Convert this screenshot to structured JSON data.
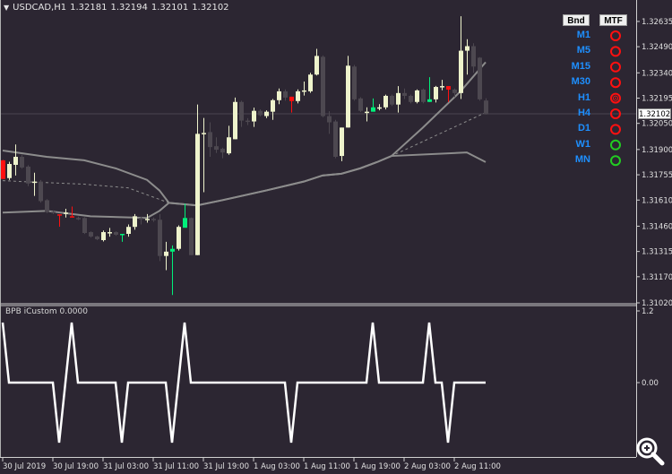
{
  "header": {
    "symbol": "USDCAD,H1",
    "open": "1.32181",
    "high": "1.32194",
    "low": "1.32101",
    "close": "1.32102"
  },
  "current_price_label": "1.32102",
  "colors": {
    "background": "#2c2632",
    "bull": "#eef3cc",
    "bear": "#4d4850",
    "red": "#ff1010",
    "green": "#00f07a",
    "band": "#8c8c8c",
    "axis": "#d0d0d0",
    "mtf_label": "#1e8fff"
  },
  "mtf_panel": {
    "bnd_label": "Bnd",
    "mtf_label": "MTF",
    "rows": [
      {
        "tf": "M1",
        "status": "red",
        "icon": "ring-icon"
      },
      {
        "tf": "M5",
        "status": "red",
        "icon": "ring-icon"
      },
      {
        "tf": "M15",
        "status": "red",
        "icon": "ring-icon"
      },
      {
        "tf": "M30",
        "status": "red",
        "icon": "ring-icon"
      },
      {
        "tf": "H1",
        "status": "red",
        "icon": "target-icon"
      },
      {
        "tf": "H4",
        "status": "red",
        "icon": "ring-icon"
      },
      {
        "tf": "D1",
        "status": "red",
        "icon": "ring-icon"
      },
      {
        "tf": "W1",
        "status": "green",
        "icon": "ring-icon"
      },
      {
        "tf": "MN",
        "status": "green",
        "icon": "ring-icon"
      }
    ]
  },
  "chart_data": [
    {
      "type": "candlestick",
      "title": "USDCAD,H1",
      "price_range": [
        1.3102,
        1.32758
      ],
      "price_ticks": [
        "1.32635",
        "1.32490",
        "1.32340",
        "1.32195",
        "1.32050",
        "1.31900",
        "1.31755",
        "1.31610",
        "1.31460",
        "1.31315",
        "1.31170",
        "1.31020"
      ],
      "time_ticks": [
        {
          "bar": 0,
          "label": "30 Jul 2019"
        },
        {
          "bar": 8,
          "label": "30 Jul 19:00"
        },
        {
          "bar": 16,
          "label": "31 Jul 03:00"
        },
        {
          "bar": 24,
          "label": "31 Jul 11:00"
        },
        {
          "bar": 32,
          "label": "31 Jul 19:00"
        },
        {
          "bar": 40,
          "label": "1 Aug 03:00"
        },
        {
          "bar": 48,
          "label": "1 Aug 11:00"
        },
        {
          "bar": 56,
          "label": "1 Aug 19:00"
        },
        {
          "bar": 64,
          "label": "2 Aug 03:00"
        },
        {
          "bar": 72,
          "label": "2 Aug 11:00"
        }
      ],
      "candles_ohlc_kind": [
        [
          1.31838,
          1.3184,
          1.31731,
          1.31731,
          "red"
        ],
        [
          1.31736,
          1.3183,
          1.31725,
          1.31817,
          "bull"
        ],
        [
          1.31812,
          1.31929,
          1.31751,
          1.31858,
          "bull"
        ],
        [
          1.31858,
          1.3187,
          1.3179,
          1.31797,
          "bear"
        ],
        [
          1.31802,
          1.3181,
          1.3169,
          1.31705,
          "bear"
        ],
        [
          1.31711,
          1.31767,
          1.31634,
          1.31716,
          "bull"
        ],
        [
          1.31716,
          1.31725,
          1.31595,
          1.31604,
          "bear"
        ],
        [
          1.31609,
          1.31615,
          1.31535,
          1.31543,
          "bear"
        ],
        [
          1.31543,
          1.3155,
          1.3153,
          1.31538,
          "bear"
        ],
        [
          1.31528,
          1.31528,
          1.31457,
          1.31523,
          "red"
        ],
        [
          1.31533,
          1.3156,
          1.3151,
          1.31538,
          "bull"
        ],
        [
          1.31517,
          1.31573,
          1.31512,
          1.31512,
          "red"
        ],
        [
          1.31507,
          1.31515,
          1.31495,
          1.31502,
          "bear"
        ],
        [
          1.31507,
          1.31512,
          1.31415,
          1.31421,
          "bear"
        ],
        [
          1.31426,
          1.3143,
          1.31395,
          1.31401,
          "bear"
        ],
        [
          1.31401,
          1.31405,
          1.3138,
          1.31385,
          "bear"
        ],
        [
          1.3138,
          1.31435,
          1.31372,
          1.31426,
          "bull"
        ],
        [
          1.31421,
          1.3145,
          1.314,
          1.31426,
          "bull"
        ],
        [
          1.31426,
          1.3143,
          1.31405,
          1.31411,
          "bear"
        ],
        [
          1.31416,
          1.31416,
          1.3137,
          1.31411,
          "green"
        ],
        [
          1.31416,
          1.3147,
          1.314,
          1.31456,
          "bull"
        ],
        [
          1.31456,
          1.3153,
          1.3144,
          1.31517,
          "bull"
        ],
        [
          1.31507,
          1.31515,
          1.3147,
          1.31502,
          "bear"
        ],
        [
          1.31497,
          1.3153,
          1.3148,
          1.31502,
          "bull"
        ],
        [
          1.31502,
          1.3151,
          1.31485,
          1.31497,
          "bear"
        ],
        [
          1.31497,
          1.3153,
          1.3126,
          1.31289,
          "bear"
        ],
        [
          1.31289,
          1.3137,
          1.31208,
          1.31314,
          "bull"
        ],
        [
          1.31314,
          1.3135,
          1.31065,
          1.3133,
          "green"
        ],
        [
          1.3133,
          1.31465,
          1.3132,
          1.31456,
          "bull"
        ],
        [
          1.31451,
          1.31589,
          1.31451,
          1.31507,
          "green"
        ],
        [
          1.31507,
          1.3151,
          1.31294,
          1.31294,
          "bear"
        ],
        [
          1.31294,
          1.32158,
          1.31294,
          1.3199,
          "bull"
        ],
        [
          1.3199,
          1.32081,
          1.31655,
          1.31995,
          "bull"
        ],
        [
          1.32,
          1.32056,
          1.31858,
          1.31914,
          "bear"
        ],
        [
          1.31919,
          1.3197,
          1.3188,
          1.31899,
          "bear"
        ],
        [
          1.31904,
          1.3191,
          1.3185,
          1.31883,
          "bear"
        ],
        [
          1.31878,
          1.32036,
          1.3187,
          1.3197,
          "bull"
        ],
        [
          1.31959,
          1.32198,
          1.31959,
          1.32173,
          "bull"
        ],
        [
          1.32173,
          1.3218,
          1.3203,
          1.32066,
          "bear"
        ],
        [
          1.32066,
          1.3208,
          1.3204,
          1.32061,
          "bear"
        ],
        [
          1.32061,
          1.3214,
          1.3203,
          1.32122,
          "bull"
        ],
        [
          1.32122,
          1.3213,
          1.3209,
          1.32097,
          "bear"
        ],
        [
          1.32092,
          1.32125,
          1.3208,
          1.32117,
          "bull"
        ],
        [
          1.32117,
          1.3219,
          1.3207,
          1.32183,
          "bull"
        ],
        [
          1.32183,
          1.3225,
          1.3216,
          1.32234,
          "bull"
        ],
        [
          1.32234,
          1.32245,
          1.3218,
          1.32198,
          "bear"
        ],
        [
          1.32203,
          1.32203,
          1.32112,
          1.32178,
          "red"
        ],
        [
          1.32178,
          1.32245,
          1.32165,
          1.32234,
          "bull"
        ],
        [
          1.32234,
          1.3229,
          1.3221,
          1.32239,
          "bull"
        ],
        [
          1.32234,
          1.3234,
          1.32225,
          1.3233,
          "bull"
        ],
        [
          1.3233,
          1.32478,
          1.32325,
          1.32437,
          "bull"
        ],
        [
          1.32432,
          1.3244,
          1.32085,
          1.32092,
          "bear"
        ],
        [
          1.32092,
          1.3212,
          1.3199,
          1.32056,
          "bear"
        ],
        [
          1.32061,
          1.3207,
          1.3185,
          1.31858,
          "bear"
        ],
        [
          1.31863,
          1.32026,
          1.31833,
          1.32026,
          "bull"
        ],
        [
          1.32026,
          1.32437,
          1.32026,
          1.32381,
          "bull"
        ],
        [
          1.32376,
          1.32385,
          1.3218,
          1.32188,
          "bear"
        ],
        [
          1.32193,
          1.322,
          1.32115,
          1.32122,
          "bear"
        ],
        [
          1.32112,
          1.32142,
          1.32061,
          1.32117,
          "bull"
        ],
        [
          1.32117,
          1.32193,
          1.32117,
          1.32142,
          "green"
        ],
        [
          1.32137,
          1.3216,
          1.32125,
          1.32142,
          "bull"
        ],
        [
          1.32142,
          1.32215,
          1.3213,
          1.32208,
          "bull"
        ],
        [
          1.32208,
          1.32215,
          1.3215,
          1.32158,
          "bear"
        ],
        [
          1.32158,
          1.32264,
          1.32112,
          1.32224,
          "bull"
        ],
        [
          1.32224,
          1.3225,
          1.3219,
          1.32208,
          "bear"
        ],
        [
          1.32208,
          1.32215,
          1.32165,
          1.32173,
          "bear"
        ],
        [
          1.32173,
          1.32245,
          1.32165,
          1.32239,
          "bull"
        ],
        [
          1.32244,
          1.3225,
          1.32165,
          1.32173,
          "bear"
        ],
        [
          1.32173,
          1.32315,
          1.32173,
          1.32188,
          "green"
        ],
        [
          1.32188,
          1.32265,
          1.3217,
          1.32259,
          "bull"
        ],
        [
          1.32259,
          1.323,
          1.3224,
          1.32264,
          "bull"
        ],
        [
          1.32264,
          1.32264,
          1.32173,
          1.32244,
          "red"
        ],
        [
          1.32244,
          1.3225,
          1.322,
          1.32224,
          "bear"
        ],
        [
          1.32224,
          1.32665,
          1.3219,
          1.32467,
          "bull"
        ],
        [
          1.32467,
          1.32533,
          1.3233,
          1.32493,
          "bull"
        ],
        [
          1.32493,
          1.3251,
          1.3234,
          1.32376,
          "bear"
        ],
        [
          1.32427,
          1.3243,
          1.3218,
          1.32188,
          "bear"
        ],
        [
          1.32181,
          1.32194,
          1.32101,
          1.32102,
          "bear"
        ]
      ],
      "bands": {
        "upper": [
          [
            0,
            1.31894
          ],
          [
            7,
            1.31858
          ],
          [
            13,
            1.31838
          ],
          [
            18,
            1.31792
          ],
          [
            23,
            1.31726
          ],
          [
            25,
            1.31665
          ],
          [
            26.5,
            1.31594
          ],
          [
            31,
            1.31579
          ],
          [
            35,
            1.31609
          ],
          [
            42,
            1.31665
          ],
          [
            48,
            1.31716
          ],
          [
            51,
            1.31751
          ],
          [
            54,
            1.31761
          ],
          [
            57,
            1.31792
          ],
          [
            59.7,
            1.31828
          ],
          [
            62,
            1.31863
          ],
          [
            67,
            1.32026
          ],
          [
            73,
            1.32234
          ],
          [
            77,
            1.32401
          ]
        ],
        "middle": [
          [
            0,
            1.31721
          ],
          [
            13,
            1.31701
          ],
          [
            20,
            1.3168
          ],
          [
            26.5,
            1.31594
          ],
          [
            31,
            1.31579
          ],
          [
            35,
            1.31609
          ],
          [
            42,
            1.31665
          ],
          [
            48,
            1.31716
          ],
          [
            51,
            1.31751
          ],
          [
            54,
            1.31761
          ],
          [
            57,
            1.31792
          ],
          [
            59.7,
            1.31828
          ],
          [
            62,
            1.31863
          ],
          [
            77,
            1.32112
          ]
        ],
        "lower": [
          [
            0,
            1.31538
          ],
          [
            7,
            1.31548
          ],
          [
            14,
            1.31517
          ],
          [
            23,
            1.31507
          ],
          [
            25,
            1.31548
          ],
          [
            26.5,
            1.31594
          ],
          [
            31,
            1.31579
          ],
          [
            35,
            1.31609
          ],
          [
            42,
            1.31665
          ],
          [
            48,
            1.31716
          ],
          [
            51,
            1.31751
          ],
          [
            54,
            1.31761
          ],
          [
            57,
            1.31792
          ],
          [
            59.7,
            1.31828
          ],
          [
            62,
            1.31863
          ],
          [
            74,
            1.31883
          ],
          [
            77,
            1.31828
          ]
        ]
      }
    },
    {
      "type": "line",
      "title": "BPB iCustom 0.0000",
      "yticks": [
        "1.2",
        "0.00"
      ],
      "ylim": [
        -1.1,
        1.2
      ],
      "values": [
        1,
        0,
        0,
        0,
        0,
        0,
        0,
        0,
        0,
        -1,
        0,
        1,
        0,
        0,
        0,
        0,
        0,
        0,
        0,
        -1,
        0,
        0,
        0,
        0,
        0,
        0,
        0,
        -1,
        0,
        1,
        0,
        0,
        0,
        0,
        0,
        0,
        0,
        0,
        0,
        0,
        0,
        0,
        0,
        0,
        0,
        0,
        -1,
        0,
        0,
        0,
        0,
        0,
        0,
        0,
        0,
        0,
        0,
        0,
        0,
        1,
        0,
        0,
        0,
        0,
        0,
        0,
        0,
        0,
        1,
        0,
        0,
        -1,
        0,
        0,
        0,
        0,
        0,
        0
      ]
    }
  ]
}
